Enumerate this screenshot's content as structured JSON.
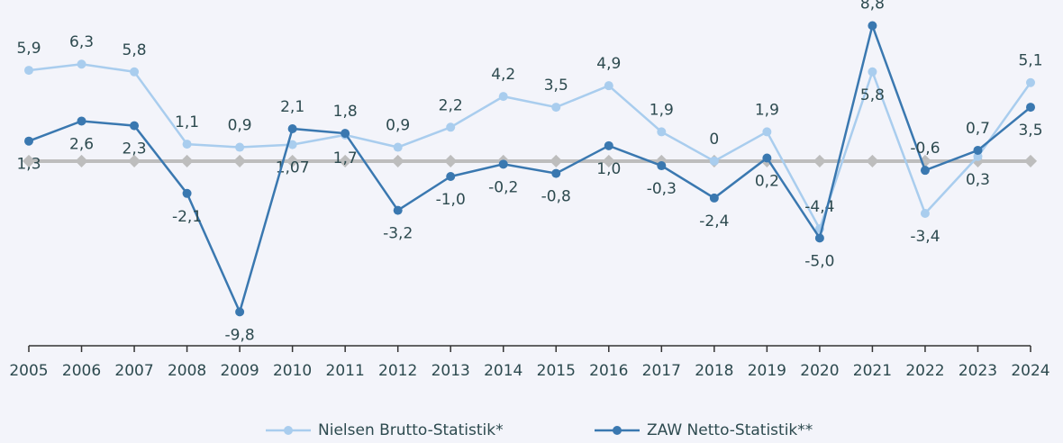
{
  "chart_data": {
    "type": "line",
    "categories": [
      "2005",
      "2006",
      "2007",
      "2008",
      "2009",
      "2010",
      "2011",
      "2012",
      "2013",
      "2014",
      "2015",
      "2016",
      "2017",
      "2018",
      "2019",
      "2020",
      "2021",
      "2022",
      "2023",
      "2024"
    ],
    "series": [
      {
        "name": "Nielsen Brutto-Statistik*",
        "color": "#a9cdee",
        "values": [
          5.9,
          6.3,
          5.8,
          1.1,
          0.9,
          1.07,
          1.7,
          0.9,
          2.2,
          4.2,
          3.5,
          4.9,
          1.9,
          0,
          1.9,
          -4.4,
          5.8,
          -3.4,
          0.3,
          5.1
        ],
        "value_labels": [
          "5,9",
          "6,3",
          "5,8",
          "1,1",
          "0,9",
          "1,07",
          "1,7",
          "0,9",
          "2,2",
          "4,2",
          "3,5",
          "4,9",
          "1,9",
          "0",
          "1,9",
          "-4,4",
          "5,8",
          "-3,4",
          "0,3",
          "5,1"
        ]
      },
      {
        "name": "ZAW Netto-Statistik**",
        "color": "#3a78b0",
        "values": [
          1.3,
          2.6,
          2.3,
          -2.1,
          -9.8,
          2.1,
          1.8,
          -3.2,
          -1.0,
          -0.2,
          -0.8,
          1.0,
          -0.3,
          -2.4,
          0.2,
          -5.0,
          8.8,
          -0.6,
          0.7,
          3.5
        ],
        "value_labels": [
          "1,3",
          "2,6",
          "2,3",
          "-2,1",
          "-9,8",
          "2,1",
          "1,8",
          "-3,2",
          "-1,0",
          "-0,2",
          "-0,8",
          "1,0",
          "-0,3",
          "-2,4",
          "0,2",
          "-5,0",
          "8,8",
          "-0,6",
          "0,7",
          "3,5"
        ]
      }
    ],
    "ylim": [
      -12,
      10
    ]
  }
}
